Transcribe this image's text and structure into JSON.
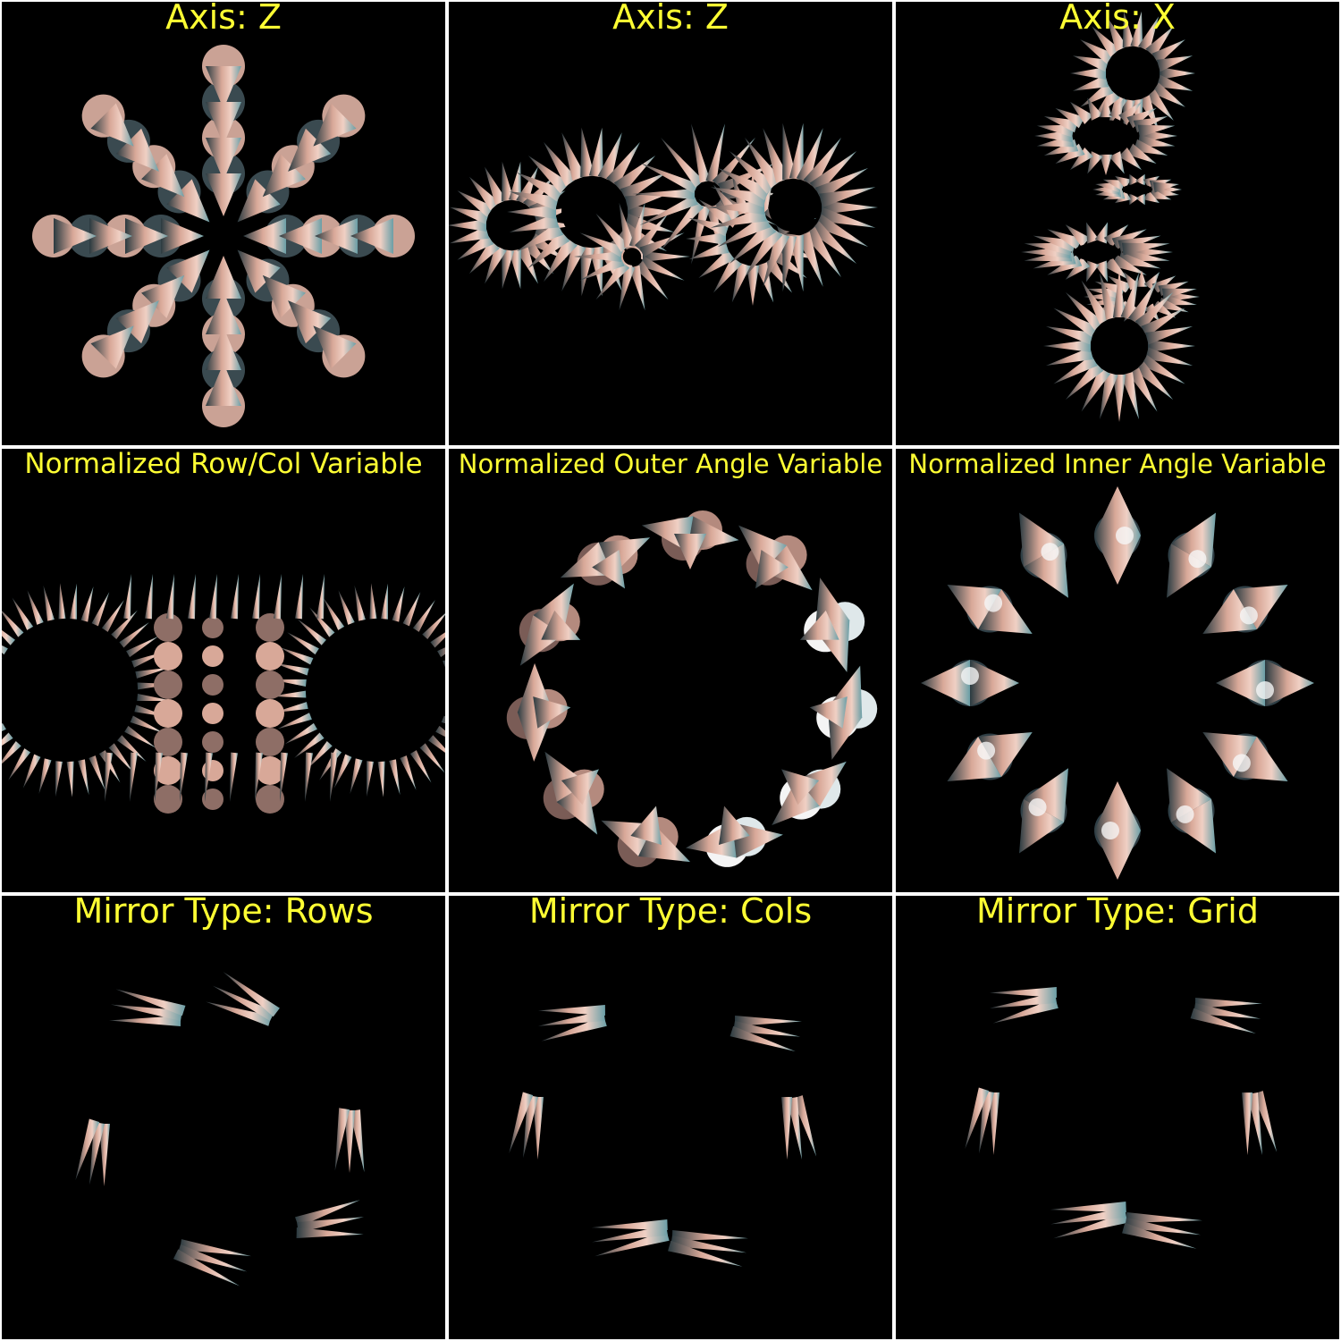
{
  "panels": [
    {
      "title": "Axis: Z",
      "pattern": "radial-spikes"
    },
    {
      "title": "Axis: Z",
      "pattern": "horizontal-rings"
    },
    {
      "title": "Axis: X",
      "pattern": "vertical-rings"
    },
    {
      "title": "Normalized Row/Col Variable",
      "pattern": "spiked-rings"
    },
    {
      "title": "Normalized Outer Angle Variable",
      "pattern": "cone-clusters"
    },
    {
      "title": "Normalized Inner Angle Variable",
      "pattern": "radial-spikes-bright"
    },
    {
      "title": "Mirror Type: Rows",
      "pattern": "mirror-rows"
    },
    {
      "title": "Mirror Type: Cols",
      "pattern": "mirror-cols"
    },
    {
      "title": "Mirror Type: Grid",
      "pattern": "mirror-grid"
    }
  ],
  "colors": {
    "title_text": "#ffff33",
    "panel_background": "#000000",
    "separator": "#ffffff",
    "cone_copper": "#d8a898",
    "cone_teal": "#6a9ea6",
    "cone_dark": "#2a3a40"
  }
}
